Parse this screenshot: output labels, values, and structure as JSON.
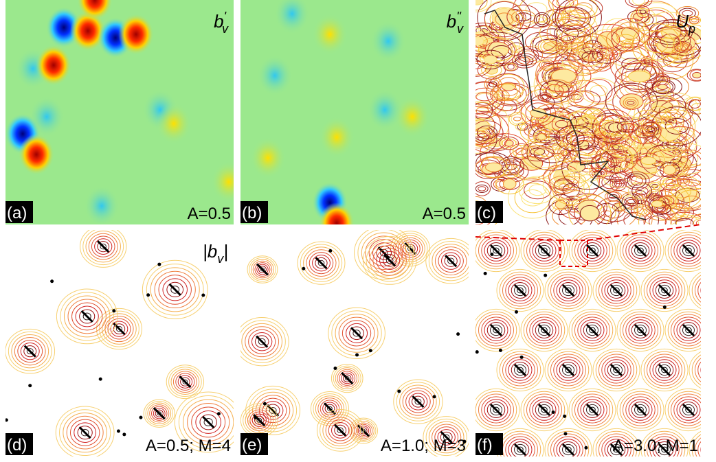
{
  "panels": [
    {
      "tag": "(a)",
      "note": "A=0.5",
      "math": {
        "base": "b",
        "sup": "'",
        "sub": "v"
      }
    },
    {
      "tag": "(b)",
      "note": "A=0.5",
      "math": {
        "base": "b",
        "sup": "''",
        "sub": "v"
      }
    },
    {
      "tag": "(c)",
      "math": {
        "base": "U",
        "sub": "p"
      }
    },
    {
      "tag": "(d)",
      "note": "A=0.5; M=4",
      "math": {
        "base": "|b",
        "sub": "v",
        "after": "|"
      }
    },
    {
      "tag": "(e)",
      "note": "A=1.0; M=3"
    },
    {
      "tag": "(f)",
      "note": "A=3.0; M=1"
    }
  ]
}
